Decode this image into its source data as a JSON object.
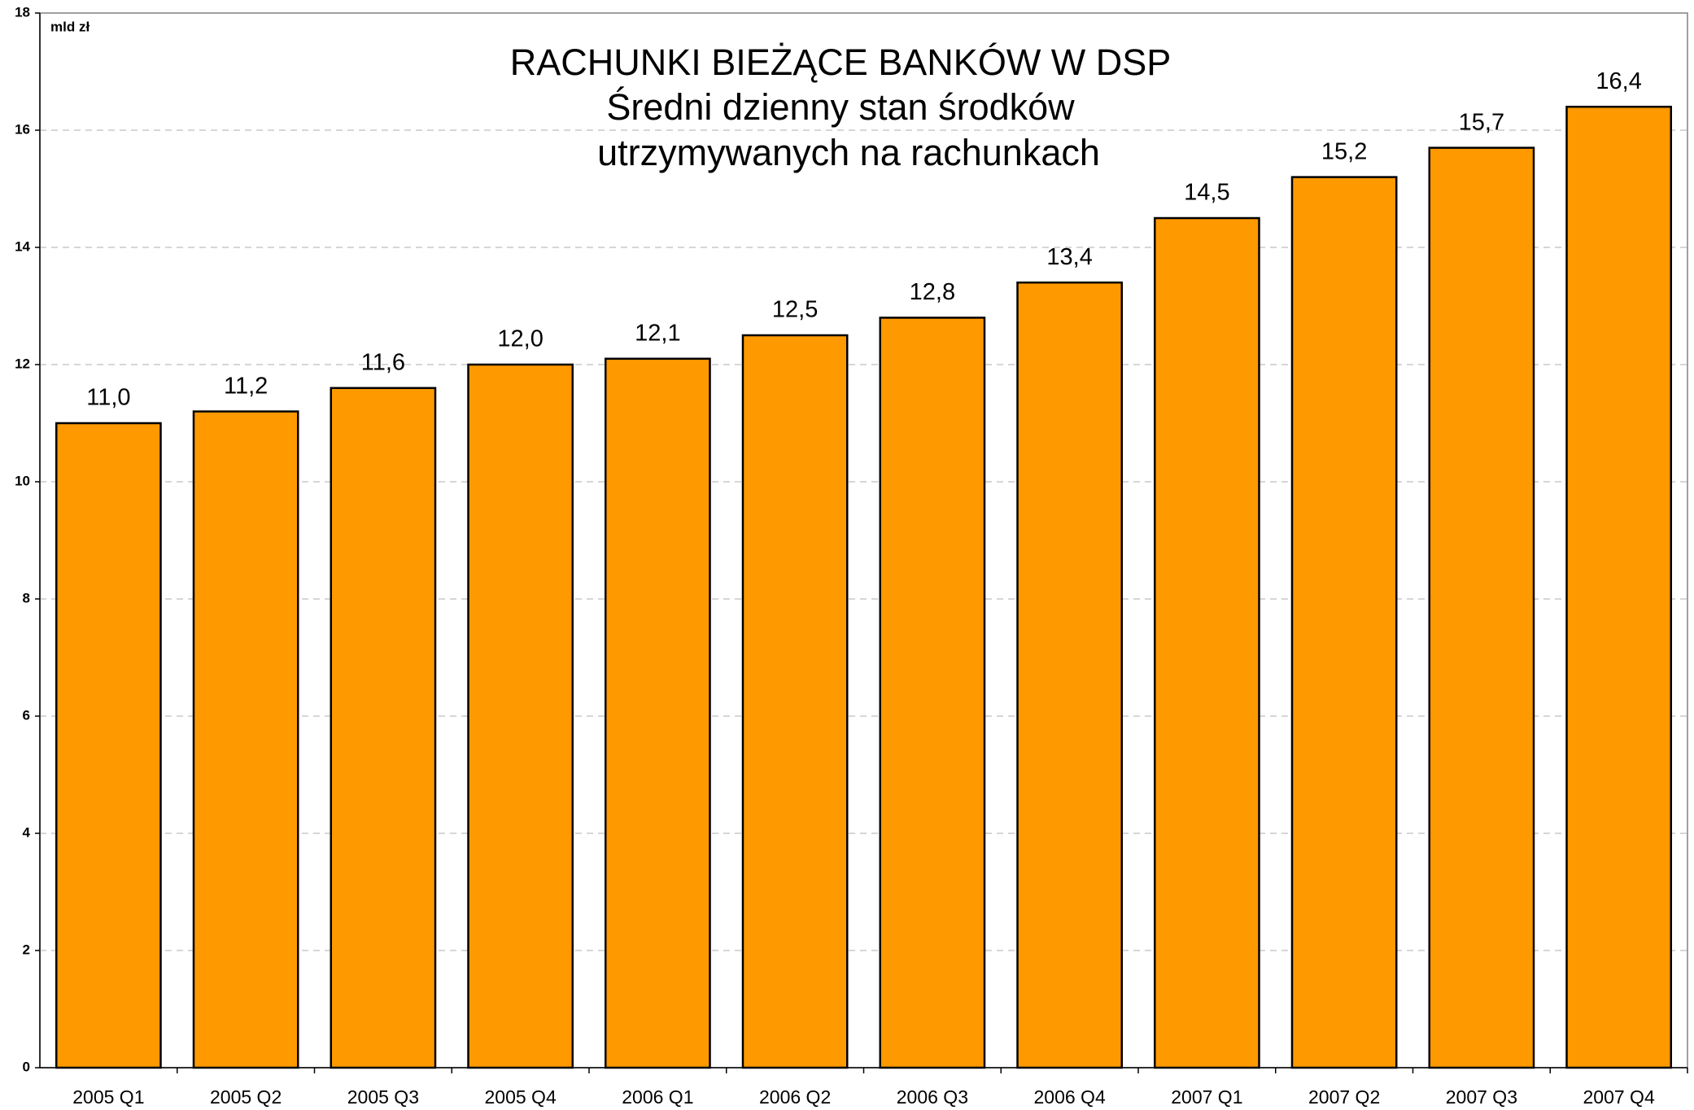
{
  "chart_data": {
    "type": "bar",
    "title": "RACHUNKI BIEŻĄCE BANKÓW W DSP",
    "subtitle": [
      "Średni dzienny stan środków",
      "utrzymywanych na rachunkach"
    ],
    "ylabel": "mld zł",
    "categories": [
      "2005 Q1",
      "2005 Q2",
      "2005 Q3",
      "2005 Q4",
      "2006 Q1",
      "2006 Q2",
      "2006 Q3",
      "2006 Q4",
      "2007 Q1",
      "2007 Q2",
      "2007 Q3",
      "2007 Q4"
    ],
    "values": [
      11.0,
      11.2,
      11.6,
      12.0,
      12.1,
      12.5,
      12.8,
      13.4,
      14.5,
      15.2,
      15.7,
      16.4
    ],
    "value_labels": [
      "11,0",
      "11,2",
      "11,6",
      "12,0",
      "12,1",
      "12,5",
      "12,8",
      "13,4",
      "14,5",
      "15,2",
      "15,7",
      "16,4"
    ],
    "color": "#ff9900",
    "ylim": [
      0,
      18
    ],
    "yticks": [
      0,
      2,
      4,
      6,
      8,
      10,
      12,
      14,
      16,
      18
    ],
    "grid": true
  }
}
